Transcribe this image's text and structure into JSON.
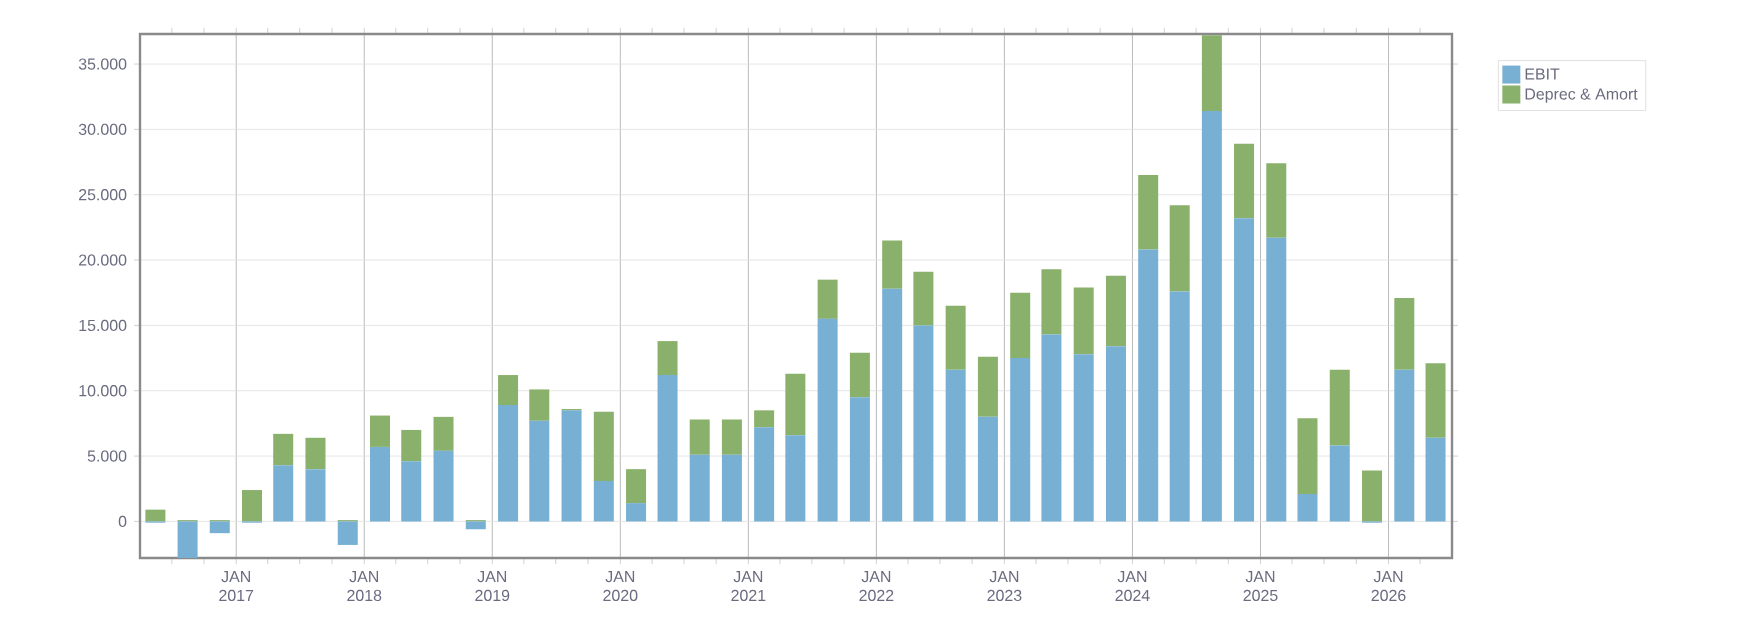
{
  "chart_data": {
    "type": "bar",
    "stacked": true,
    "grid": true,
    "legend": "top right",
    "x": [
      "2016-05-15",
      "2016-08-15",
      "2016-11-15",
      "2017-02-15",
      "2017-05-15",
      "2017-08-15",
      "2017-11-15",
      "2018-02-15",
      "2018-05-15",
      "2018-08-15",
      "2018-11-15",
      "2019-02-15",
      "2019-05-15",
      "2019-08-15",
      "2019-11-15",
      "2020-02-15",
      "2020-05-15",
      "2020-08-15",
      "2020-11-15",
      "2021-02-15",
      "2021-05-15",
      "2021-08-15",
      "2021-11-15",
      "2022-02-15",
      "2022-05-15",
      "2022-08-15",
      "2022-11-15",
      "2023-02-15",
      "2023-05-15",
      "2023-08-15",
      "2023-11-15",
      "2024-02-15",
      "2024-05-15",
      "2024-08-15",
      "2024-11-15",
      "2025-02-15",
      "2025-05-15",
      "2025-08-15",
      "2025-11-15",
      "2026-02-15",
      "2026-05-15"
    ],
    "series": [
      {
        "name": "EBIT",
        "color": "#77b0d3",
        "values": [
          -100,
          -2800,
          -900,
          -100,
          4300,
          4000,
          -1800,
          5700,
          4600,
          5400,
          -600,
          8900,
          7700,
          8500,
          3100,
          1400,
          11200,
          5100,
          5100,
          7200,
          6600,
          15500,
          9500,
          17800,
          15000,
          11600,
          8000,
          12500,
          14300,
          12800,
          13400,
          20800,
          17600,
          31400,
          23200,
          21700,
          2100,
          5800,
          -100,
          11600,
          6400
        ]
      },
      {
        "name": "Deprec & Amort",
        "color": "#8ab16b",
        "values": [
          900,
          100,
          100,
          2400,
          2400,
          2400,
          100,
          2400,
          2400,
          2600,
          100,
          2300,
          2400,
          100,
          5300,
          2600,
          2600,
          2700,
          2700,
          1300,
          4700,
          3000,
          3400,
          3700,
          4100,
          4900,
          4600,
          5000,
          5000,
          5100,
          5400,
          5700,
          6600,
          5800,
          5700,
          5700,
          5800,
          5800,
          3900,
          5500,
          5700
        ]
      }
    ],
    "xlim": [
      "2016-04-01",
      "2026-07-01"
    ],
    "xticks": [
      {
        "value": "2016-07-01",
        "label": null
      },
      {
        "value": "2016-10-01",
        "label": null
      },
      {
        "value": "2017-01-01",
        "label": "JAN 2017"
      },
      {
        "value": "2017-04-01",
        "label": null
      },
      {
        "value": "2017-07-01",
        "label": null
      },
      {
        "value": "2017-10-01",
        "label": null
      },
      {
        "value": "2018-01-01",
        "label": "JAN 2018"
      },
      {
        "value": "2018-04-01",
        "label": null
      },
      {
        "value": "2018-07-01",
        "label": null
      },
      {
        "value": "2018-10-01",
        "label": null
      },
      {
        "value": "2019-01-01",
        "label": "JAN 2019"
      },
      {
        "value": "2019-04-01",
        "label": null
      },
      {
        "value": "2019-07-01",
        "label": null
      },
      {
        "value": "2019-10-01",
        "label": null
      },
      {
        "value": "2020-01-01",
        "label": "JAN 2020"
      },
      {
        "value": "2020-04-01",
        "label": null
      },
      {
        "value": "2020-07-01",
        "label": null
      },
      {
        "value": "2020-10-01",
        "label": null
      },
      {
        "value": "2021-01-01",
        "label": "JAN 2021"
      },
      {
        "value": "2021-04-01",
        "label": null
      },
      {
        "value": "2021-07-01",
        "label": null
      },
      {
        "value": "2021-10-01",
        "label": null
      },
      {
        "value": "2022-01-01",
        "label": "JAN 2022"
      },
      {
        "value": "2022-04-01",
        "label": null
      },
      {
        "value": "2022-07-01",
        "label": null
      },
      {
        "value": "2022-10-01",
        "label": null
      },
      {
        "value": "2023-01-01",
        "label": "JAN 2023"
      },
      {
        "value": "2023-04-01",
        "label": null
      },
      {
        "value": "2023-07-01",
        "label": null
      },
      {
        "value": "2023-10-01",
        "label": null
      },
      {
        "value": "2024-01-01",
        "label": "JAN 2024"
      },
      {
        "value": "2024-04-01",
        "label": null
      },
      {
        "value": "2024-07-01",
        "label": null
      },
      {
        "value": "2024-10-01",
        "label": null
      },
      {
        "value": "2025-01-01",
        "label": "JAN 2025"
      },
      {
        "value": "2025-04-01",
        "label": null
      },
      {
        "value": "2025-07-01",
        "label": null
      },
      {
        "value": "2025-10-01",
        "label": null
      },
      {
        "value": "2026-01-01",
        "label": "JAN 2026"
      },
      {
        "value": "2026-04-01",
        "label": null
      }
    ],
    "ylim": [
      -2800,
      37300
    ],
    "yticks": [
      0,
      {
        "value": 5000,
        "label": "5.000"
      },
      {
        "value": 10000,
        "label": "10.000"
      },
      {
        "value": 15000,
        "label": "15.000"
      },
      {
        "value": 20000,
        "label": "20.000"
      },
      {
        "value": 25000,
        "label": "25.000"
      },
      {
        "value": 30000,
        "label": "30.000"
      },
      {
        "value": 35000,
        "label": "35.000"
      }
    ]
  }
}
